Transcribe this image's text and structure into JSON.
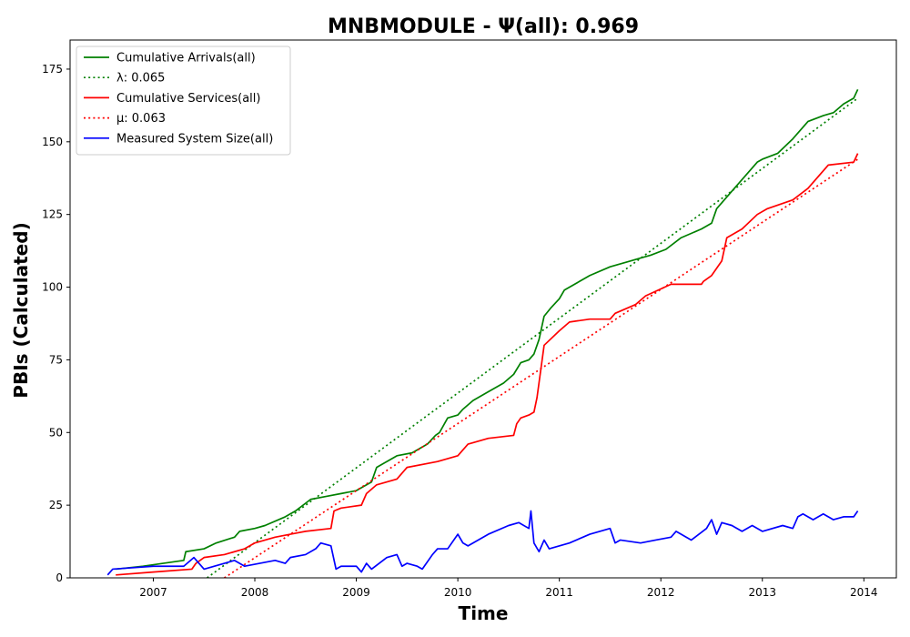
{
  "chart_data": {
    "type": "line",
    "title": "MNBMODULE -  Ψ(all): 0.969",
    "xlabel": "Time",
    "ylabel": "PBIs (Calculated)",
    "xlim": [
      2006.18,
      2014.32
    ],
    "ylim": [
      0,
      185
    ],
    "x_ticks": [
      2007,
      2008,
      2009,
      2010,
      2011,
      2012,
      2013,
      2014
    ],
    "x_tick_labels": [
      "2007",
      "2008",
      "2009",
      "2010",
      "2011",
      "2012",
      "2013",
      "2014"
    ],
    "y_ticks": [
      0,
      25,
      50,
      75,
      100,
      125,
      150,
      175
    ],
    "y_tick_labels": [
      "0",
      "25",
      "50",
      "75",
      "100",
      "125",
      "150",
      "175"
    ],
    "grid": false,
    "legend_position": "top-left",
    "series": [
      {
        "name": "Cumulative Arrivals(all)",
        "color": "#008000",
        "style": "solid",
        "x": [
          2006.63,
          2006.9,
          2007.3,
          2007.32,
          2007.5,
          2007.62,
          2007.8,
          2007.85,
          2008.0,
          2008.1,
          2008.3,
          2008.4,
          2008.55,
          2008.7,
          2008.85,
          2009.0,
          2009.15,
          2009.2,
          2009.3,
          2009.4,
          2009.55,
          2009.7,
          2009.78,
          2009.82,
          2009.9,
          2010.0,
          2010.05,
          2010.15,
          2010.3,
          2010.45,
          2010.55,
          2010.62,
          2010.7,
          2010.75,
          2010.8,
          2010.85,
          2010.92,
          2011.0,
          2011.05,
          2011.15,
          2011.3,
          2011.5,
          2011.7,
          2011.8,
          2011.9,
          2012.05,
          2012.2,
          2012.4,
          2012.5,
          2012.55,
          2012.7,
          2012.85,
          2012.95,
          2013.0,
          2013.15,
          2013.3,
          2013.45,
          2013.6,
          2013.7,
          2013.8,
          2013.9,
          2013.94
        ],
        "y": [
          3,
          4,
          6,
          9,
          10,
          12,
          14,
          16,
          17,
          18,
          21,
          23,
          27,
          28,
          29,
          30,
          33,
          38,
          40,
          42,
          43,
          46,
          49,
          50,
          55,
          56,
          58,
          61,
          64,
          67,
          70,
          74,
          75,
          77,
          82,
          90,
          93,
          96,
          99,
          101,
          104,
          107,
          109,
          110,
          111,
          113,
          117,
          120,
          122,
          127,
          133,
          139,
          143,
          144,
          146,
          151,
          157,
          159,
          160,
          163,
          165,
          168
        ]
      },
      {
        "name": "λ: 0.065",
        "color": "#008000",
        "style": "dotted",
        "x": [
          2007.53,
          2013.94
        ],
        "y": [
          0,
          165
        ]
      },
      {
        "name": "Cumulative Services(all)",
        "color": "#ff0000",
        "style": "solid",
        "x": [
          2006.63,
          2007.0,
          2007.38,
          2007.42,
          2007.5,
          2007.7,
          2007.9,
          2008.0,
          2008.2,
          2008.35,
          2008.5,
          2008.75,
          2008.78,
          2008.85,
          2009.05,
          2009.1,
          2009.2,
          2009.4,
          2009.5,
          2009.8,
          2010.0,
          2010.1,
          2010.3,
          2010.55,
          2010.58,
          2010.62,
          2010.7,
          2010.75,
          2010.78,
          2010.85,
          2011.0,
          2011.1,
          2011.3,
          2011.5,
          2011.55,
          2011.75,
          2011.85,
          2012.1,
          2012.4,
          2012.42,
          2012.5,
          2012.6,
          2012.65,
          2012.8,
          2012.95,
          2013.05,
          2013.3,
          2013.45,
          2013.65,
          2013.9,
          2013.94
        ],
        "y": [
          1,
          2,
          3,
          5,
          7,
          8,
          10,
          12,
          14,
          15,
          16,
          17,
          23,
          24,
          25,
          29,
          32,
          34,
          38,
          40,
          42,
          46,
          48,
          49,
          53,
          55,
          56,
          57,
          62,
          80,
          85,
          88,
          89,
          89,
          91,
          94,
          97,
          101,
          101,
          102,
          104,
          109,
          117,
          120,
          125,
          127,
          130,
          134,
          142,
          143,
          146
        ]
      },
      {
        "name": "μ: 0.063",
        "color": "#ff0000",
        "style": "dotted",
        "x": [
          2007.7,
          2013.94
        ],
        "y": [
          0,
          144
        ]
      },
      {
        "name": "Measured System Size(all)",
        "color": "#0000ff",
        "style": "solid",
        "x": [
          2006.55,
          2006.6,
          2007.0,
          2007.3,
          2007.4,
          2007.5,
          2007.7,
          2007.8,
          2007.9,
          2008.2,
          2008.3,
          2008.35,
          2008.5,
          2008.6,
          2008.65,
          2008.75,
          2008.8,
          2008.85,
          2009.0,
          2009.05,
          2009.1,
          2009.15,
          2009.3,
          2009.4,
          2009.45,
          2009.5,
          2009.6,
          2009.65,
          2009.75,
          2009.8,
          2009.9,
          2010.0,
          2010.05,
          2010.1,
          2010.3,
          2010.5,
          2010.6,
          2010.7,
          2010.72,
          2010.75,
          2010.8,
          2010.85,
          2010.9,
          2011.1,
          2011.3,
          2011.5,
          2011.55,
          2011.6,
          2011.8,
          2011.95,
          2012.1,
          2012.15,
          2012.3,
          2012.45,
          2012.5,
          2012.55,
          2012.6,
          2012.7,
          2012.8,
          2012.9,
          2013.0,
          2013.2,
          2013.3,
          2013.35,
          2013.4,
          2013.5,
          2013.6,
          2013.7,
          2013.8,
          2013.9,
          2013.94
        ],
        "y": [
          1,
          3,
          4,
          4,
          7,
          3,
          5,
          6,
          4,
          6,
          5,
          7,
          8,
          10,
          12,
          11,
          3,
          4,
          4,
          2,
          5,
          3,
          7,
          8,
          4,
          5,
          4,
          3,
          8,
          10,
          10,
          15,
          12,
          11,
          15,
          18,
          19,
          17,
          23,
          12,
          9,
          13,
          10,
          12,
          15,
          17,
          12,
          13,
          12,
          13,
          14,
          16,
          13,
          17,
          20,
          15,
          19,
          18,
          16,
          18,
          16,
          18,
          17,
          21,
          22,
          20,
          22,
          20,
          21,
          21,
          23
        ]
      }
    ]
  }
}
